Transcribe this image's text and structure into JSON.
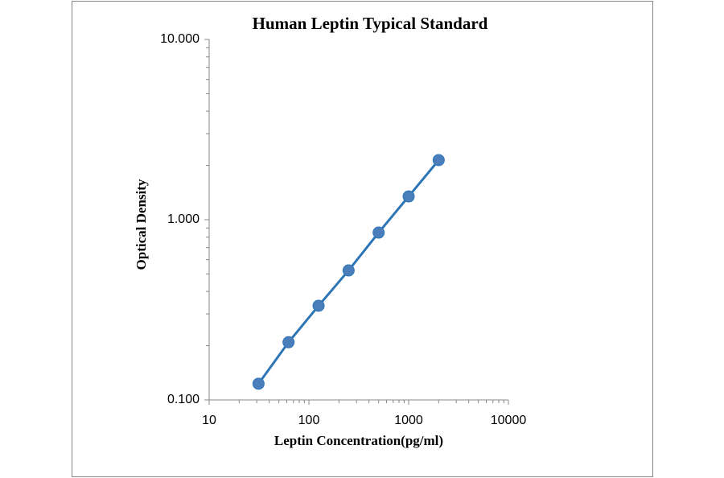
{
  "chart_data": {
    "type": "scatter",
    "title": "Human Leptin Typical Standard",
    "x_label": "Leptin Concentration(pg/ml)",
    "y_label": "Optical Density",
    "x": [
      31.25,
      62.5,
      125,
      250,
      500,
      1000,
      2000
    ],
    "values": [
      0.123,
      0.209,
      0.333,
      0.523,
      0.848,
      1.346,
      2.14
    ],
    "color": "#2e75b6",
    "marker_color": "#4a7ebb",
    "x_log": true,
    "y_log": true,
    "xlim": [
      10,
      10000
    ],
    "ylim": [
      0.1,
      10
    ],
    "xticks": [
      10,
      100,
      1000,
      10000
    ],
    "yticks": [
      {
        "value": 0.1,
        "label": "0.100"
      },
      {
        "value": 1,
        "label": "1.000"
      },
      {
        "value": 10,
        "label": "10.000"
      }
    ],
    "minor_ticks": true
  }
}
